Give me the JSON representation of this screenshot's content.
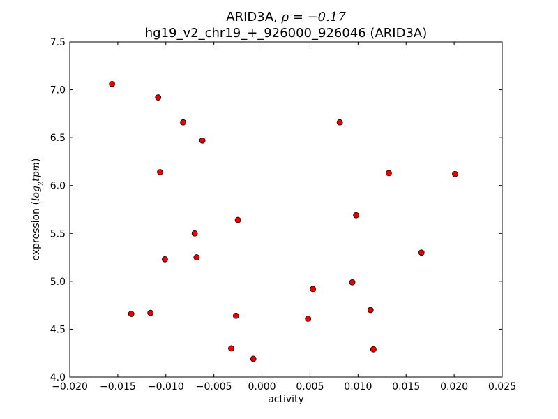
{
  "chart_data": {
    "type": "scatter",
    "title_line1_prefix": "ARID3A, ",
    "title_line1_rho": "ρ",
    "title_line1_value": " = −0.17",
    "title_line2": "hg19_v2_chr19_+_926000_926046 (ARID3A)",
    "xlabel": "activity",
    "ylabel_prefix": "expression (",
    "ylabel_log": "log",
    "ylabel_sub": "2",
    "ylabel_tpm": "tpm",
    "ylabel_suffix": ")",
    "xlim": [
      -0.02,
      0.025
    ],
    "ylim": [
      4.0,
      7.5
    ],
    "xticks": [
      -0.02,
      -0.015,
      -0.01,
      -0.005,
      0.0,
      0.005,
      0.01,
      0.015,
      0.02,
      0.025
    ],
    "xtick_labels": [
      "−0.020",
      "−0.015",
      "−0.010",
      "−0.005",
      "0.000",
      "0.005",
      "0.010",
      "0.015",
      "0.020",
      "0.025"
    ],
    "yticks": [
      4.0,
      4.5,
      5.0,
      5.5,
      6.0,
      6.5,
      7.0,
      7.5
    ],
    "ytick_labels": [
      "4.0",
      "4.5",
      "5.0",
      "5.5",
      "6.0",
      "6.5",
      "7.0",
      "7.5"
    ],
    "grid": false,
    "marker_color": "#e60000",
    "points": [
      {
        "x": -0.0156,
        "y": 7.06
      },
      {
        "x": -0.0108,
        "y": 6.92
      },
      {
        "x": -0.0082,
        "y": 6.66
      },
      {
        "x": -0.0062,
        "y": 6.47
      },
      {
        "x": -0.0106,
        "y": 6.14
      },
      {
        "x": -0.007,
        "y": 5.5
      },
      {
        "x": -0.0025,
        "y": 5.64
      },
      {
        "x": -0.0101,
        "y": 5.23
      },
      {
        "x": -0.0068,
        "y": 5.25
      },
      {
        "x": -0.0136,
        "y": 4.66
      },
      {
        "x": -0.0116,
        "y": 4.67
      },
      {
        "x": -0.0027,
        "y": 4.64
      },
      {
        "x": -0.0032,
        "y": 4.3
      },
      {
        "x": -0.0009,
        "y": 4.19
      },
      {
        "x": 0.0048,
        "y": 4.61
      },
      {
        "x": 0.0053,
        "y": 4.92
      },
      {
        "x": 0.0081,
        "y": 6.66
      },
      {
        "x": 0.0098,
        "y": 5.69
      },
      {
        "x": 0.0094,
        "y": 4.99
      },
      {
        "x": 0.0113,
        "y": 4.7
      },
      {
        "x": 0.0116,
        "y": 4.29
      },
      {
        "x": 0.0132,
        "y": 6.13
      },
      {
        "x": 0.0166,
        "y": 5.3
      },
      {
        "x": 0.0201,
        "y": 6.12
      }
    ]
  }
}
